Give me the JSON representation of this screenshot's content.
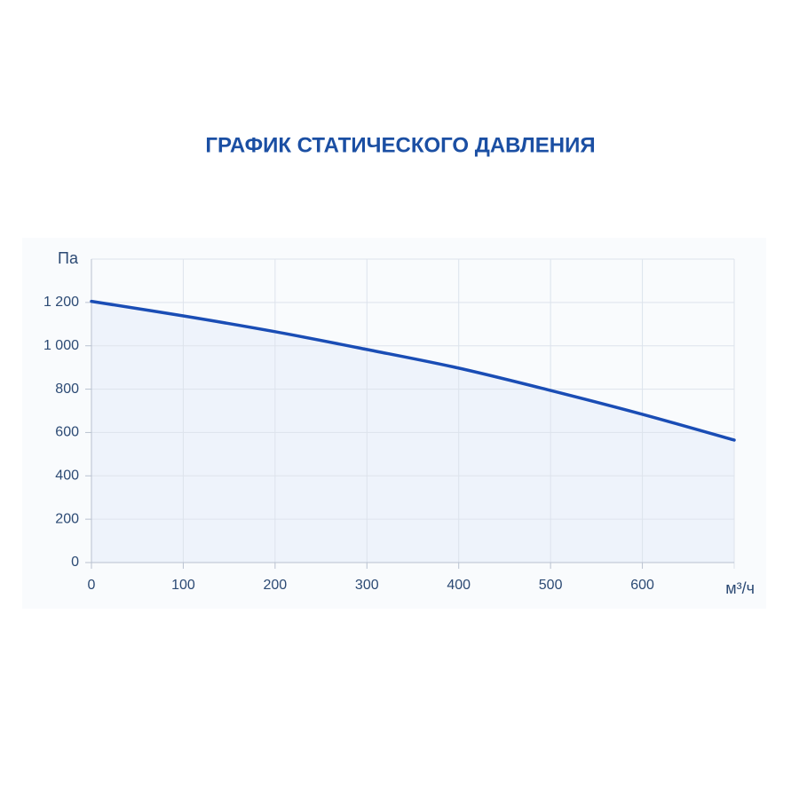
{
  "chart_data": {
    "type": "line",
    "title": "ГРАФИК СТАТИЧЕСКОГО ДАВЛЕНИЯ",
    "y_label": "Па",
    "x_label": "м³/ч",
    "x": [
      0,
      100,
      200,
      300,
      400,
      500,
      600,
      700
    ],
    "values": [
      1205,
      1138,
      1065,
      983,
      897,
      794,
      684,
      565
    ],
    "color": "#1a4db5",
    "fill_color": "#eef3fb",
    "xlim": [
      0,
      700
    ],
    "ylim": [
      0,
      1400
    ],
    "xticks": [
      0,
      100,
      200,
      300,
      400,
      500,
      600
    ],
    "yticks": [
      0,
      200,
      400,
      600,
      800,
      {
        "value": 1000,
        "label": "1 000"
      },
      {
        "value": 1200,
        "label": "1 200"
      }
    ],
    "grid": true
  }
}
